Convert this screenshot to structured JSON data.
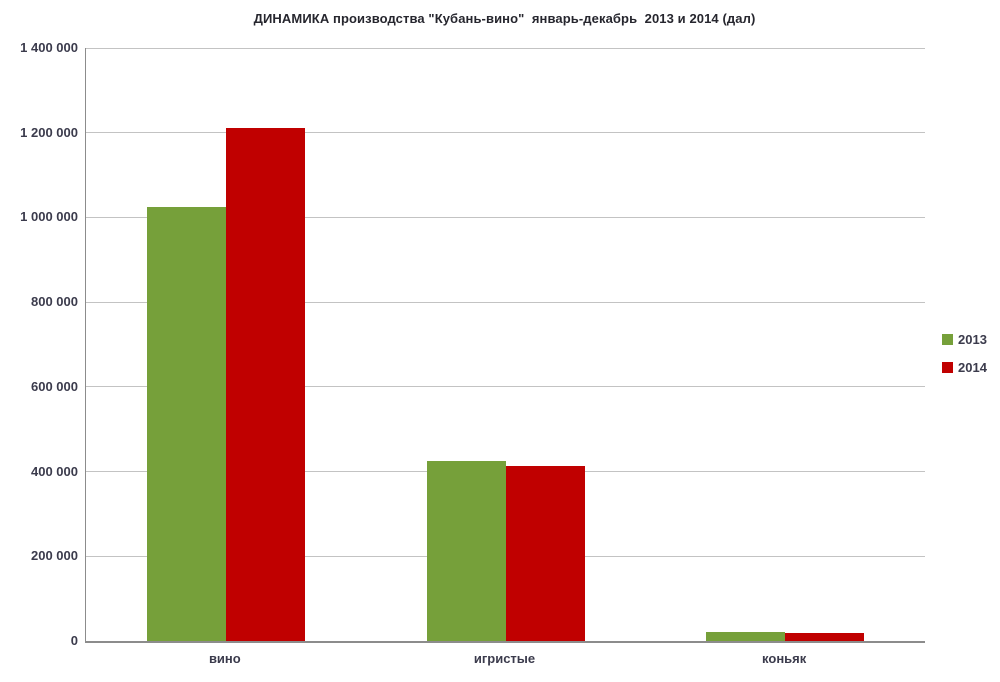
{
  "title": "ДИНАМИКА производства \"Кубань-вино\"  январь-декабрь  2013 и 2014 (дал)",
  "colors": {
    "series_2013": "#76A03A",
    "series_2014": "#C00000",
    "gridline": "#C3C3C3",
    "axis_line": "#8C8C8C",
    "label_text": "#3B3B4C"
  },
  "chart_data": {
    "type": "bar",
    "title": "ДИНАМИКА производства \"Кубань-вино\"  январь-декабрь  2013 и 2014 (дал)",
    "categories": [
      "вино",
      "игристые",
      "коньяк"
    ],
    "series": [
      {
        "name": "2013",
        "color": "#76A03A",
        "values": [
          1025000,
          424000,
          21000
        ]
      },
      {
        "name": "2014",
        "color": "#C00000",
        "values": [
          1210000,
          413000,
          20000
        ]
      }
    ],
    "xlabel": "",
    "ylabel": "",
    "ylim": [
      0,
      1400000
    ],
    "ytick_step": 200000,
    "ytick_labels": [
      "0",
      "200 000",
      "400 000",
      "600 000",
      "800 000",
      "1 000 000",
      "1 200 000",
      "1 400 000"
    ],
    "grid": true,
    "legend_position": "right"
  }
}
